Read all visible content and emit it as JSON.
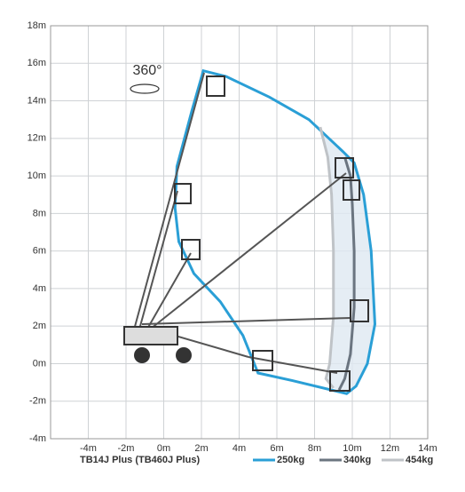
{
  "chart_data": {
    "type": "line",
    "model_label": "TB14J Plus (TB460J Plus)",
    "rotation_label": "360°",
    "xlim": [
      -6,
      14
    ],
    "ylim": [
      -4,
      18
    ],
    "xticks": [
      {
        "value": -4,
        "label": "-4m"
      },
      {
        "value": -2,
        "label": "-2m"
      },
      {
        "value": 0,
        "label": "0m"
      },
      {
        "value": 2,
        "label": "2m"
      },
      {
        "value": 4,
        "label": "4m"
      },
      {
        "value": 6,
        "label": "6m"
      },
      {
        "value": 8,
        "label": "8m"
      },
      {
        "value": 10,
        "label": "10m"
      },
      {
        "value": 12,
        "label": "12m"
      },
      {
        "value": 14,
        "label": "14m"
      }
    ],
    "yticks": [
      {
        "value": -4,
        "label": "-4m"
      },
      {
        "value": -2,
        "label": "-2m"
      },
      {
        "value": 0,
        "label": "0m"
      },
      {
        "value": 2,
        "label": "2m"
      },
      {
        "value": 4,
        "label": "4m"
      },
      {
        "value": 6,
        "label": "6m"
      },
      {
        "value": 8,
        "label": "8m"
      },
      {
        "value": 10,
        "label": "10m"
      },
      {
        "value": 12,
        "label": "12m"
      },
      {
        "value": 14,
        "label": "14m"
      },
      {
        "value": 16,
        "label": "16m"
      },
      {
        "value": 18,
        "label": "18m"
      }
    ],
    "grid": true,
    "series": [
      {
        "name": "250kg",
        "color": "#2a9fd6",
        "closed": true,
        "x": [
          2.1,
          3.3,
          5.6,
          7.7,
          9.5,
          10.1,
          10.6,
          11.0,
          11.2,
          10.8,
          10.2,
          9.7,
          6.8,
          5.0,
          4.2,
          3.0,
          1.6,
          0.8,
          0.6,
          0.7,
          1.5
        ],
        "values": [
          15.6,
          15.3,
          14.2,
          13.0,
          11.3,
          10.7,
          9.0,
          6.0,
          2.1,
          0.0,
          -1.2,
          -1.6,
          -0.9,
          -0.5,
          1.5,
          3.3,
          4.8,
          6.5,
          8.3,
          10.5,
          13.5
        ]
      },
      {
        "name": "340kg",
        "color": "#6b7580",
        "closed": false,
        "x": [
          9.6,
          9.9,
          10.0,
          10.1,
          10.1,
          9.9,
          9.6,
          9.3
        ],
        "values": [
          11.0,
          10.0,
          8.5,
          6.0,
          3.0,
          0.5,
          -0.8,
          -1.4
        ]
      },
      {
        "name": "454kg",
        "color": "#bfc3c7",
        "closed": false,
        "x": [
          8.3,
          8.7,
          8.9,
          9.0,
          9.0,
          8.8,
          8.6,
          9.0
        ],
        "values": [
          12.6,
          11.0,
          9.0,
          6.0,
          2.5,
          0.0,
          -0.8,
          -1.3
        ]
      }
    ]
  }
}
